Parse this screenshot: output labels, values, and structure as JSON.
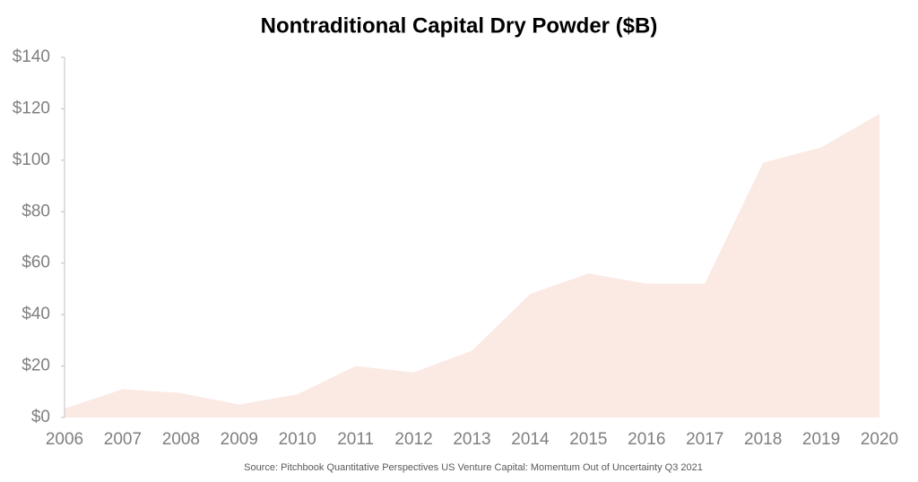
{
  "chart_data": {
    "type": "area",
    "title": "Nontraditional Capital Dry Powder ($B)",
    "source": "Source: Pitchbook Quantitative Perspectives US Venture Capital: Momentum Out of Uncertainty Q3 2021",
    "x": [
      2006,
      2007,
      2008,
      2009,
      2010,
      2011,
      2012,
      2013,
      2014,
      2015,
      2016,
      2017,
      2018,
      2019,
      2020
    ],
    "values": [
      3.5,
      11,
      9.5,
      5,
      9,
      20,
      17.5,
      26,
      48,
      56,
      52,
      52,
      99,
      105,
      118
    ],
    "color": "#fbe9e4",
    "xlim": [
      2006,
      2020
    ],
    "xticks": [
      2006,
      2007,
      2008,
      2009,
      2010,
      2011,
      2012,
      2013,
      2014,
      2015,
      2016,
      2017,
      2018,
      2019,
      2020
    ],
    "ylim": [
      0,
      140
    ],
    "yticks": [
      {
        "value": 0,
        "label": "$0"
      },
      {
        "value": 20,
        "label": "$20"
      },
      {
        "value": 40,
        "label": "$40"
      },
      {
        "value": 60,
        "label": "$60"
      },
      {
        "value": 80,
        "label": "$80"
      },
      {
        "value": 100,
        "label": "$100"
      },
      {
        "value": 120,
        "label": "$120"
      },
      {
        "value": 140,
        "label": "$140"
      }
    ]
  }
}
